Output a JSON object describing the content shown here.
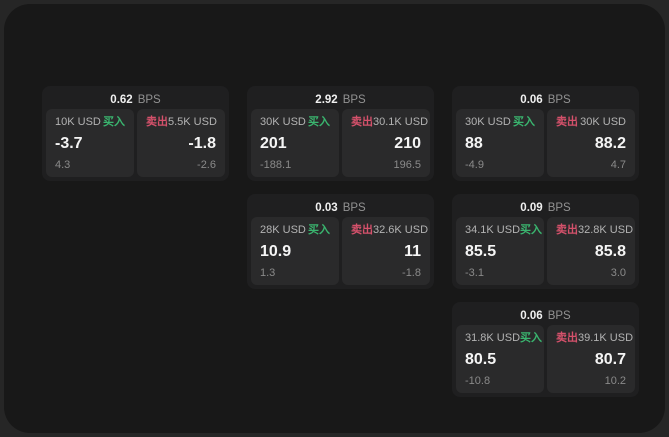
{
  "labels": {
    "bps_unit": "BPS",
    "buy": "买入",
    "sell": "卖出"
  },
  "colors": {
    "buy_green": "#3ab56f",
    "sell_red": "#d5516b",
    "window_bg": "#181818",
    "card_bg": "#1f1f20",
    "panel_bg": "#2a2a2b"
  },
  "cards": [
    {
      "bps": "0.62",
      "row": 1,
      "col": 1,
      "buy": {
        "amount": "10K USD",
        "value": "-3.7",
        "delta": "4.3"
      },
      "sell": {
        "amount": "5.5K USD",
        "value": "-1.8",
        "delta": "-2.6"
      }
    },
    {
      "bps": "2.92",
      "row": 1,
      "col": 2,
      "buy": {
        "amount": "30K USD",
        "value": "201",
        "delta": "-188.1"
      },
      "sell": {
        "amount": "30.1K USD",
        "value": "210",
        "delta": "196.5"
      }
    },
    {
      "bps": "0.06",
      "row": 1,
      "col": 3,
      "buy": {
        "amount": "30K USD",
        "value": "88",
        "delta": "-4.9"
      },
      "sell": {
        "amount": "30K USD",
        "value": "88.2",
        "delta": "4.7"
      }
    },
    {
      "bps": "0.03",
      "row": 2,
      "col": 2,
      "buy": {
        "amount": "28K USD",
        "value": "10.9",
        "delta": "1.3"
      },
      "sell": {
        "amount": "32.6K USD",
        "value": "11",
        "delta": "-1.8"
      }
    },
    {
      "bps": "0.09",
      "row": 2,
      "col": 3,
      "buy": {
        "amount": "34.1K USD",
        "value": "85.5",
        "delta": "-3.1"
      },
      "sell": {
        "amount": "32.8K USD",
        "value": "85.8",
        "delta": "3.0"
      }
    },
    {
      "bps": "0.06",
      "row": 3,
      "col": 3,
      "buy": {
        "amount": "31.8K USD",
        "value": "80.5",
        "delta": "-10.8"
      },
      "sell": {
        "amount": "39.1K USD",
        "value": "80.7",
        "delta": "10.2"
      }
    }
  ]
}
